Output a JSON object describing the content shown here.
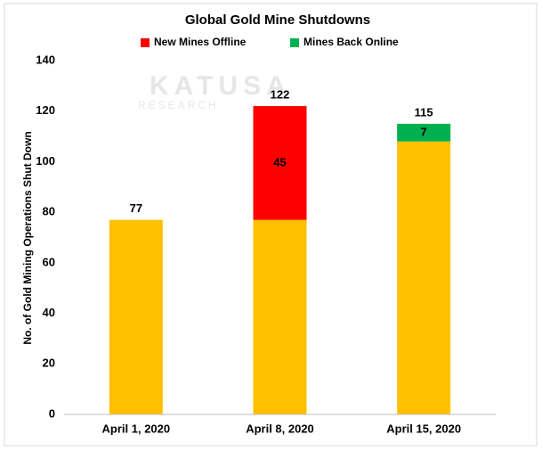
{
  "chart_data": {
    "type": "stacked_bar",
    "title": "Global Gold Mine Shutdowns",
    "ylabel": "No. of Gold Mining Operations Shut Down",
    "watermark": "KATUSA",
    "watermark_subtitle": "RESEARCH",
    "categories": [
      "April 1, 2020",
      "April 8, 2020",
      "April 15, 2020"
    ],
    "series": [
      {
        "color": "#ffc000",
        "values": [
          77,
          77,
          108
        ]
      },
      {
        "name": "New Mines Offline",
        "color": "#ff0000",
        "values": [
          null,
          45,
          null
        ]
      },
      {
        "name": "Mines Back Online",
        "color": "#00b050",
        "values": [
          null,
          null,
          7
        ]
      }
    ],
    "totals": [
      77,
      122,
      115
    ],
    "ylim": [
      0,
      140
    ],
    "yticks": [
      0,
      20,
      40,
      60,
      80,
      100,
      120,
      140
    ],
    "grid": false,
    "legend": "top"
  }
}
